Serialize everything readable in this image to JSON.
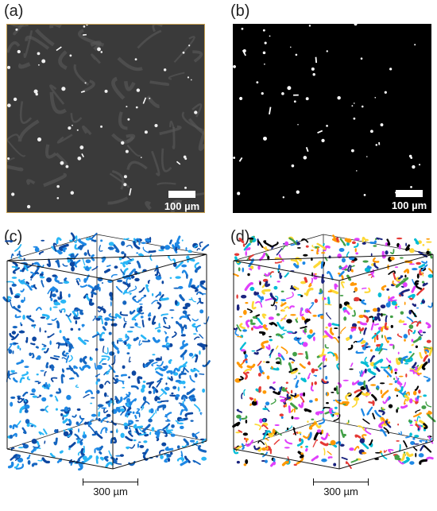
{
  "figure": {
    "panels": [
      {
        "id": "a",
        "label": "(a)",
        "type": "grayscale-micrograph",
        "scalebar": "100 µm"
      },
      {
        "id": "b",
        "label": "(b)",
        "type": "binarized-micrograph",
        "scalebar": "100 µm"
      },
      {
        "id": "c",
        "label": "(c)",
        "type": "3d-volume-rendering",
        "scalebar": "300 µm",
        "colors": [
          "#1565c0",
          "#1e88e5",
          "#0d47a1",
          "#29b6f6"
        ]
      },
      {
        "id": "d",
        "label": "(d)",
        "type": "3d-labeled-volume",
        "scalebar": "300 µm",
        "colors": [
          "#e53935",
          "#1e88e5",
          "#fdd835",
          "#43a047",
          "#e040fb",
          "#00bcd4",
          "#1a237e",
          "#ff9800",
          "#000000"
        ]
      }
    ]
  }
}
